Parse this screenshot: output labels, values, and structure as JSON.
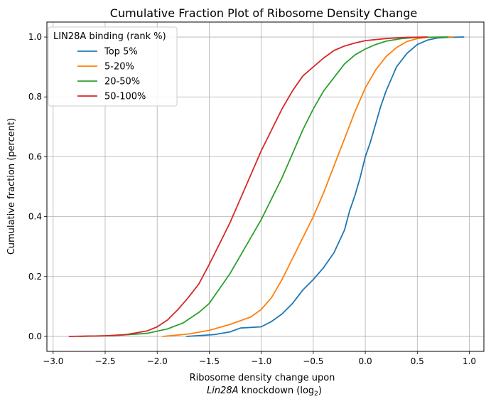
{
  "chart_data": {
    "type": "line",
    "title": "Cumulative Fraction Plot of Ribosome Density Change",
    "xlabel_line1": "Ribosome density change upon",
    "xlabel_line2_italic": "Lin28A",
    "xlabel_line2_rest": " knockdown (log",
    "xlabel_subscript": "2",
    "xlabel_close": ")",
    "ylabel": "Cumulative fraction (percent)",
    "xlim": [
      -3.06,
      1.14
    ],
    "ylim": [
      -0.05,
      1.05
    ],
    "grid": true,
    "legend": {
      "title": "LIN28A binding (rank %)",
      "position": "upper-left"
    },
    "x_ticks": [
      -3.0,
      -2.5,
      -2.0,
      -1.5,
      -1.0,
      -0.5,
      0.0,
      0.5,
      1.0
    ],
    "x_tick_labels": [
      "−3.0",
      "−2.5",
      "−2.0",
      "−1.5",
      "−1.0",
      "−0.5",
      "0.0",
      "0.5",
      "1.0"
    ],
    "y_ticks": [
      0.0,
      0.2,
      0.4,
      0.6,
      0.8,
      1.0
    ],
    "y_tick_labels": [
      "0.0",
      "0.2",
      "0.4",
      "0.6",
      "0.8",
      "1.0"
    ],
    "series": [
      {
        "name": "Top 5%",
        "color": "#1f77b4",
        "points": [
          [
            -1.72,
            0.0
          ],
          [
            -1.45,
            0.006
          ],
          [
            -1.3,
            0.015
          ],
          [
            -1.2,
            0.028
          ],
          [
            -1.0,
            0.032
          ],
          [
            -0.9,
            0.05
          ],
          [
            -0.8,
            0.075
          ],
          [
            -0.7,
            0.11
          ],
          [
            -0.6,
            0.155
          ],
          [
            -0.5,
            0.19
          ],
          [
            -0.4,
            0.23
          ],
          [
            -0.3,
            0.28
          ],
          [
            -0.2,
            0.355
          ],
          [
            -0.15,
            0.42
          ],
          [
            -0.1,
            0.47
          ],
          [
            -0.05,
            0.53
          ],
          [
            0.0,
            0.6
          ],
          [
            0.05,
            0.65
          ],
          [
            0.1,
            0.71
          ],
          [
            0.15,
            0.77
          ],
          [
            0.2,
            0.82
          ],
          [
            0.3,
            0.9
          ],
          [
            0.4,
            0.945
          ],
          [
            0.5,
            0.975
          ],
          [
            0.6,
            0.99
          ],
          [
            0.7,
            0.997
          ],
          [
            0.8,
            0.999
          ],
          [
            0.95,
            1.0
          ]
        ]
      },
      {
        "name": "5-20%",
        "color": "#ff7f0e",
        "points": [
          [
            -1.95,
            0.0
          ],
          [
            -1.7,
            0.008
          ],
          [
            -1.5,
            0.02
          ],
          [
            -1.3,
            0.04
          ],
          [
            -1.1,
            0.065
          ],
          [
            -1.0,
            0.09
          ],
          [
            -0.9,
            0.13
          ],
          [
            -0.8,
            0.19
          ],
          [
            -0.7,
            0.26
          ],
          [
            -0.6,
            0.33
          ],
          [
            -0.5,
            0.4
          ],
          [
            -0.4,
            0.48
          ],
          [
            -0.3,
            0.57
          ],
          [
            -0.2,
            0.66
          ],
          [
            -0.1,
            0.75
          ],
          [
            0.0,
            0.83
          ],
          [
            0.1,
            0.89
          ],
          [
            0.2,
            0.935
          ],
          [
            0.3,
            0.965
          ],
          [
            0.4,
            0.985
          ],
          [
            0.5,
            0.995
          ],
          [
            0.6,
            0.999
          ],
          [
            0.85,
            1.0
          ]
        ]
      },
      {
        "name": "20-50%",
        "color": "#2ca02c",
        "points": [
          [
            -2.75,
            0.0
          ],
          [
            -2.4,
            0.003
          ],
          [
            -2.1,
            0.01
          ],
          [
            -1.9,
            0.025
          ],
          [
            -1.75,
            0.045
          ],
          [
            -1.6,
            0.08
          ],
          [
            -1.5,
            0.11
          ],
          [
            -1.4,
            0.16
          ],
          [
            -1.3,
            0.21
          ],
          [
            -1.2,
            0.27
          ],
          [
            -1.1,
            0.33
          ],
          [
            -1.0,
            0.39
          ],
          [
            -0.9,
            0.46
          ],
          [
            -0.8,
            0.53
          ],
          [
            -0.7,
            0.61
          ],
          [
            -0.6,
            0.69
          ],
          [
            -0.5,
            0.76
          ],
          [
            -0.4,
            0.82
          ],
          [
            -0.3,
            0.865
          ],
          [
            -0.2,
            0.91
          ],
          [
            -0.1,
            0.94
          ],
          [
            0.0,
            0.96
          ],
          [
            0.1,
            0.975
          ],
          [
            0.2,
            0.986
          ],
          [
            0.35,
            0.995
          ],
          [
            0.5,
            0.999
          ],
          [
            0.8,
            1.0
          ]
        ]
      },
      {
        "name": "50-100%",
        "color": "#d62728",
        "points": [
          [
            -2.85,
            0.0
          ],
          [
            -2.5,
            0.002
          ],
          [
            -2.3,
            0.006
          ],
          [
            -2.1,
            0.018
          ],
          [
            -2.0,
            0.032
          ],
          [
            -1.9,
            0.055
          ],
          [
            -1.8,
            0.09
          ],
          [
            -1.7,
            0.13
          ],
          [
            -1.6,
            0.175
          ],
          [
            -1.5,
            0.24
          ],
          [
            -1.4,
            0.31
          ],
          [
            -1.3,
            0.38
          ],
          [
            -1.2,
            0.46
          ],
          [
            -1.1,
            0.54
          ],
          [
            -1.0,
            0.62
          ],
          [
            -0.9,
            0.69
          ],
          [
            -0.8,
            0.76
          ],
          [
            -0.7,
            0.82
          ],
          [
            -0.6,
            0.87
          ],
          [
            -0.5,
            0.9
          ],
          [
            -0.4,
            0.93
          ],
          [
            -0.3,
            0.955
          ],
          [
            -0.2,
            0.97
          ],
          [
            -0.1,
            0.98
          ],
          [
            0.0,
            0.988
          ],
          [
            0.2,
            0.995
          ],
          [
            0.4,
            0.999
          ],
          [
            0.6,
            1.0
          ]
        ]
      }
    ]
  }
}
